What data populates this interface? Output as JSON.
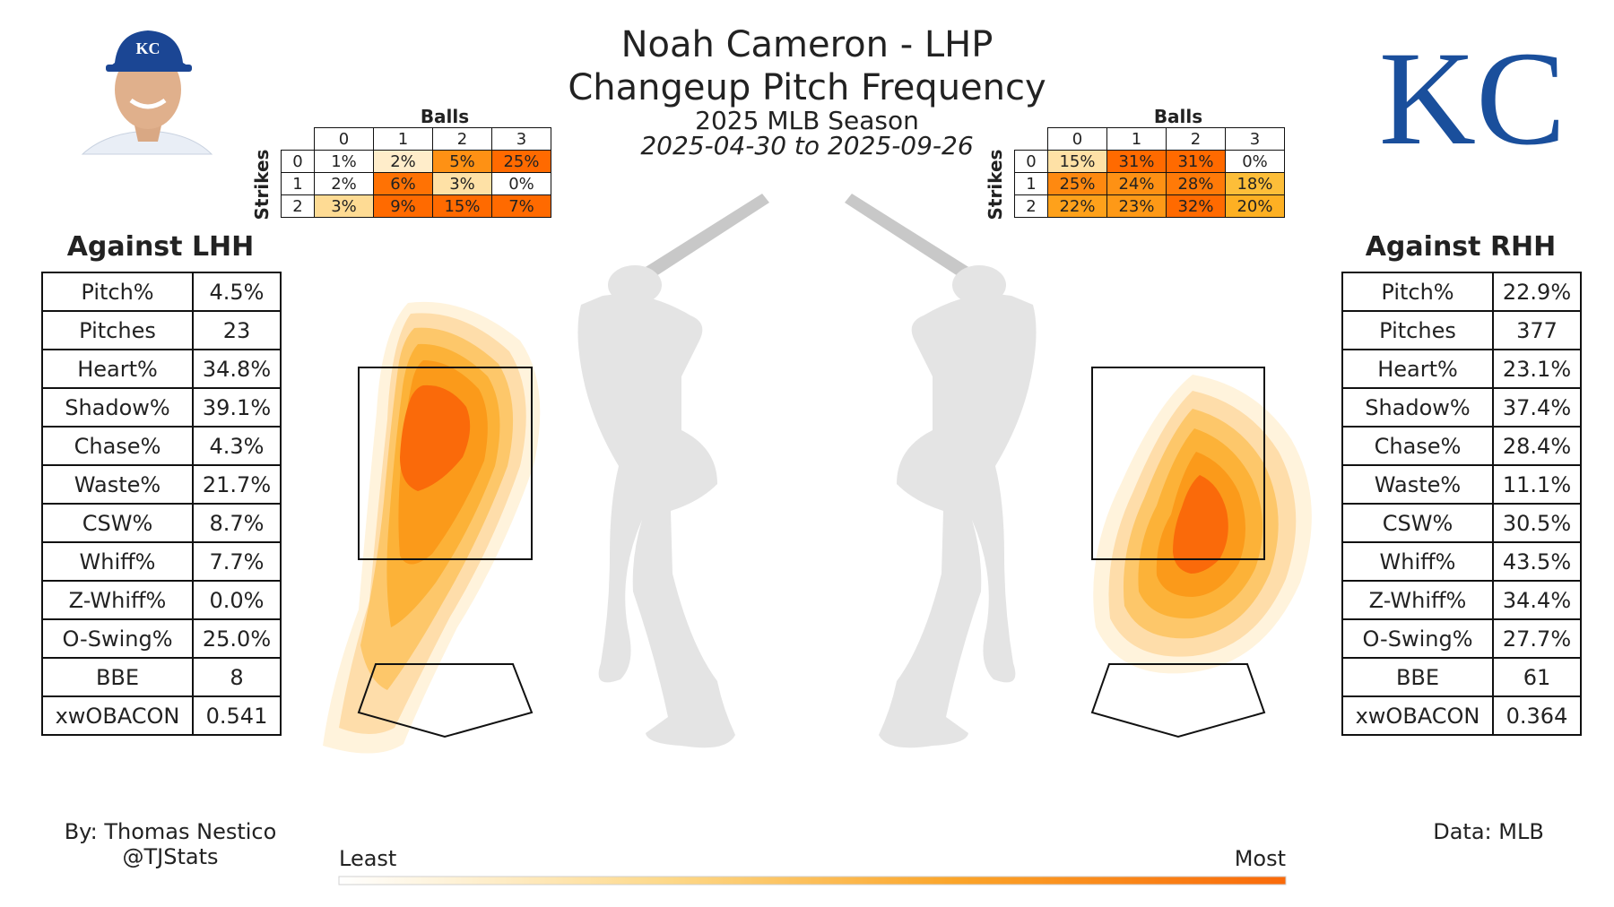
{
  "header": {
    "title_line1": "Noah Cameron - LHP",
    "title_line2": "Changeup Pitch Frequency",
    "season": "2025 MLB Season",
    "date_range": "2025-04-30 to 2025-09-26"
  },
  "logo_text": "KC",
  "colors": {
    "low": "#fff3dc",
    "mid": "#fdb827",
    "high": "#ff6a00",
    "team": "#1a4f9c"
  },
  "lhh": {
    "heading": "Against LHH",
    "stats": [
      {
        "label": "Pitch%",
        "value": "4.5%"
      },
      {
        "label": "Pitches",
        "value": "23"
      },
      {
        "label": "Heart%",
        "value": "34.8%"
      },
      {
        "label": "Shadow%",
        "value": "39.1%"
      },
      {
        "label": "Chase%",
        "value": "4.3%"
      },
      {
        "label": "Waste%",
        "value": "21.7%"
      },
      {
        "label": "CSW%",
        "value": "8.7%"
      },
      {
        "label": "Whiff%",
        "value": "7.7%"
      },
      {
        "label": "Z-Whiff%",
        "value": "0.0%"
      },
      {
        "label": "O-Swing%",
        "value": "25.0%"
      },
      {
        "label": "BBE",
        "value": "8"
      },
      {
        "label": "xwOBACON",
        "value": "0.541"
      }
    ],
    "count_grid": {
      "balls_label": "Balls",
      "strikes_label": "Strikes",
      "ball_headers": [
        "0",
        "1",
        "2",
        "3"
      ],
      "rows": [
        {
          "strikes": "0",
          "cells": [
            "1%",
            "2%",
            "5%",
            "25%"
          ],
          "levels": [
            0.0,
            0.05,
            0.75,
            1.0
          ]
        },
        {
          "strikes": "1",
          "cells": [
            "2%",
            "6%",
            "3%",
            "0%"
          ],
          "levels": [
            0.0,
            0.95,
            0.15,
            0.0
          ]
        },
        {
          "strikes": "2",
          "cells": [
            "3%",
            "9%",
            "15%",
            "7%"
          ],
          "levels": [
            0.2,
            1.0,
            1.0,
            1.0
          ]
        }
      ]
    }
  },
  "rhh": {
    "heading": "Against RHH",
    "stats": [
      {
        "label": "Pitch%",
        "value": "22.9%"
      },
      {
        "label": "Pitches",
        "value": "377"
      },
      {
        "label": "Heart%",
        "value": "23.1%"
      },
      {
        "label": "Shadow%",
        "value": "37.4%"
      },
      {
        "label": "Chase%",
        "value": "28.4%"
      },
      {
        "label": "Waste%",
        "value": "11.1%"
      },
      {
        "label": "CSW%",
        "value": "30.5%"
      },
      {
        "label": "Whiff%",
        "value": "43.5%"
      },
      {
        "label": "Z-Whiff%",
        "value": "34.4%"
      },
      {
        "label": "O-Swing%",
        "value": "27.7%"
      },
      {
        "label": "BBE",
        "value": "61"
      },
      {
        "label": "xwOBACON",
        "value": "0.364"
      }
    ],
    "count_grid": {
      "balls_label": "Balls",
      "strikes_label": "Strikes",
      "ball_headers": [
        "0",
        "1",
        "2",
        "3"
      ],
      "rows": [
        {
          "strikes": "0",
          "cells": [
            "15%",
            "31%",
            "31%",
            "0%"
          ],
          "levels": [
            0.15,
            1.0,
            1.0,
            0.0
          ]
        },
        {
          "strikes": "1",
          "cells": [
            "25%",
            "24%",
            "28%",
            "18%"
          ],
          "levels": [
            0.8,
            0.75,
            0.9,
            0.45
          ]
        },
        {
          "strikes": "2",
          "cells": [
            "22%",
            "23%",
            "32%",
            "20%"
          ],
          "levels": [
            0.65,
            0.7,
            1.0,
            0.55
          ]
        }
      ]
    }
  },
  "colorbar": {
    "low_label": "Least",
    "high_label": "Most"
  },
  "footer": {
    "author": "By: Thomas Nestico",
    "handle": "@TJStats",
    "source": "Data: MLB"
  }
}
